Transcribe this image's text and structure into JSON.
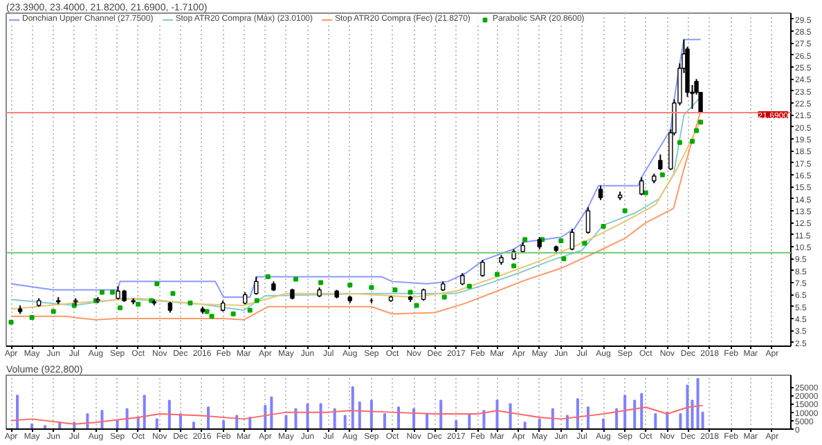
{
  "chart_data": [
    {
      "type": "candlestick",
      "title": "(23.3900, 23.4000, 21.8200, 21.6900, -1.7100)",
      "x": [
        "2015-04-14",
        "2015-05-11",
        "2015-06-08",
        "2015-07-03",
        "2015-08-04",
        "2015-09-02",
        "2015-09-11",
        "2015-09-24",
        "2015-10-24",
        "2015-11-16",
        "2016-01-02",
        "2016-01-31",
        "2016-03-03",
        "2016-03-19",
        "2016-04-13",
        "2016-05-10",
        "2016-06-18",
        "2016-07-13",
        "2016-08-01",
        "2016-09-01",
        "2016-09-29",
        "2016-10-27",
        "2016-11-15",
        "2016-12-13",
        "2017-01-10",
        "2017-02-08",
        "2017-03-07",
        "2017-03-25",
        "2017-04-07",
        "2017-05-01",
        "2017-05-25",
        "2017-06-17",
        "2017-07-10",
        "2017-07-28",
        "2017-08-25",
        "2017-09-25",
        "2017-10-13",
        "2017-10-22",
        "2017-11-06",
        "2017-11-11",
        "2017-11-19",
        "2017-11-25",
        "2017-11-30",
        "2017-12-07",
        "2017-12-13",
        "2017-12-19"
      ],
      "ohlc": [
        [
          5.3,
          5.6,
          4.9,
          5.1
        ],
        [
          5.6,
          6.2,
          5.5,
          6.0
        ],
        [
          6.0,
          6.3,
          5.7,
          5.9
        ],
        [
          5.9,
          6.2,
          5.6,
          6.0
        ],
        [
          6.0,
          6.3,
          5.8,
          6.1
        ],
        [
          6.2,
          7.2,
          6.1,
          6.8
        ],
        [
          6.8,
          6.9,
          5.9,
          6.0
        ],
        [
          6.0,
          6.2,
          5.7,
          5.9
        ],
        [
          5.9,
          6.1,
          5.6,
          5.8
        ],
        [
          5.8,
          5.9,
          5.0,
          5.2
        ],
        [
          5.3,
          5.5,
          4.9,
          5.1
        ],
        [
          5.2,
          6.0,
          5.1,
          5.8
        ],
        [
          5.8,
          6.7,
          5.7,
          6.5
        ],
        [
          6.6,
          8.0,
          6.5,
          7.6
        ],
        [
          7.4,
          7.6,
          6.8,
          6.9
        ],
        [
          6.9,
          7.0,
          6.1,
          6.2
        ],
        [
          6.4,
          7.1,
          6.3,
          6.9
        ],
        [
          6.8,
          6.9,
          6.2,
          6.3
        ],
        [
          6.3,
          6.4,
          5.8,
          6.0
        ],
        [
          6.0,
          6.2,
          5.8,
          6.0
        ],
        [
          6.0,
          6.4,
          5.9,
          6.3
        ],
        [
          6.3,
          6.4,
          5.9,
          6.1
        ],
        [
          6.1,
          7.0,
          6.0,
          6.9
        ],
        [
          6.9,
          7.6,
          6.8,
          7.4
        ],
        [
          7.4,
          8.3,
          7.3,
          8.1
        ],
        [
          8.1,
          9.4,
          8.0,
          9.2
        ],
        [
          9.2,
          9.8,
          9.0,
          9.6
        ],
        [
          9.5,
          10.3,
          9.4,
          10.1
        ],
        [
          10.1,
          10.9,
          10.0,
          10.6
        ],
        [
          11.1,
          11.3,
          10.3,
          10.5
        ],
        [
          10.5,
          10.6,
          10.0,
          10.2
        ],
        [
          10.3,
          12.0,
          10.2,
          11.7
        ],
        [
          11.7,
          13.8,
          11.6,
          13.5
        ],
        [
          15.3,
          15.6,
          14.4,
          14.6
        ],
        [
          14.6,
          15.1,
          14.4,
          14.8
        ],
        [
          14.9,
          16.3,
          14.8,
          16.0
        ],
        [
          16.0,
          16.6,
          15.8,
          16.4
        ],
        [
          17.7,
          18.2,
          16.9,
          17.0
        ],
        [
          17.0,
          20.3,
          16.9,
          20.0
        ],
        [
          20.0,
          22.8,
          19.8,
          22.5
        ],
        [
          22.5,
          25.8,
          22.3,
          25.4
        ],
        [
          25.4,
          27.8,
          25.0,
          26.6
        ],
        [
          27.0,
          27.2,
          23.0,
          23.4
        ],
        [
          23.4,
          24.0,
          22.0,
          23.3
        ],
        [
          24.3,
          24.5,
          23.2,
          23.4
        ],
        [
          23.39,
          23.4,
          21.69,
          21.69
        ]
      ],
      "series": [
        {
          "name": "Donchian Upper Channel (27.7500)",
          "type": "line",
          "color": "#8899ff",
          "x": [
            "2015-04-01",
            "2015-06-01",
            "2015-09-01",
            "2015-09-05",
            "2016-01-20",
            "2016-02-01",
            "2016-03-10",
            "2016-03-20",
            "2016-09-15",
            "2016-10-01",
            "2016-11-20",
            "2016-12-20",
            "2017-01-15",
            "2017-02-10",
            "2017-03-25",
            "2017-04-10",
            "2017-06-01",
            "2017-06-20",
            "2017-07-10",
            "2017-07-25",
            "2017-09-20",
            "2017-09-25",
            "2017-10-15",
            "2017-11-06",
            "2017-11-11",
            "2017-11-19",
            "2017-11-25",
            "2017-12-19"
          ],
          "values": [
            7.4,
            6.9,
            6.9,
            7.6,
            7.6,
            6.3,
            6.3,
            8.0,
            8.0,
            7.6,
            7.4,
            7.6,
            8.3,
            9.4,
            10.3,
            10.9,
            11.3,
            12.0,
            13.8,
            15.6,
            15.6,
            16.3,
            18.2,
            20.3,
            22.8,
            25.8,
            27.8,
            27.8
          ]
        },
        {
          "name": "Parabolic SAR (20.8600)",
          "type": "scatter",
          "color": "#00aa00",
          "x": [
            "2015-04-01",
            "2015-05-01",
            "2015-06-01",
            "2015-07-01",
            "2015-08-01",
            "2015-08-10",
            "2015-08-25",
            "2015-09-05",
            "2015-10-01",
            "2015-10-20",
            "2015-10-28",
            "2015-11-20",
            "2015-12-15",
            "2016-01-08",
            "2016-01-15",
            "2016-02-15",
            "2016-03-10",
            "2016-03-20",
            "2016-04-05",
            "2016-05-15",
            "2016-06-20",
            "2016-08-01",
            "2016-09-01",
            "2016-10-05",
            "2016-10-27",
            "2016-11-05",
            "2016-12-15",
            "2017-01-20",
            "2017-03-01",
            "2017-03-25",
            "2017-04-10",
            "2017-05-05",
            "2017-06-01",
            "2017-06-05",
            "2017-07-05",
            "2017-08-01",
            "2017-09-01",
            "2017-10-01",
            "2017-10-25",
            "2017-11-19",
            "2017-12-07",
            "2017-12-13",
            "2017-12-19"
          ],
          "values": [
            4.2,
            4.6,
            5.1,
            5.6,
            6.0,
            6.7,
            6.7,
            5.4,
            5.7,
            6.0,
            7.4,
            6.6,
            5.8,
            5.1,
            4.7,
            4.9,
            5.2,
            6.0,
            8.0,
            7.8,
            7.5,
            7.3,
            7.1,
            6.9,
            6.7,
            5.6,
            6.3,
            7.2,
            8.2,
            8.9,
            11.1,
            11.1,
            11.0,
            9.5,
            10.8,
            12.2,
            13.5,
            15.0,
            16.5,
            19.2,
            19.3,
            20.2,
            20.9
          ]
        },
        {
          "name": "Stop ATR20 Compra (Máx) (23.0100)",
          "type": "line",
          "color": "#88cccc",
          "x": [
            "2015-04-01",
            "2015-07-01",
            "2015-09-10",
            "2016-01-01",
            "2016-03-01",
            "2016-04-01",
            "2016-09-01",
            "2016-11-01",
            "2017-01-01",
            "2017-02-15",
            "2017-04-01",
            "2017-05-15",
            "2017-07-01",
            "2017-08-01",
            "2017-09-15",
            "2017-10-20",
            "2017-11-10",
            "2017-11-25",
            "2017-12-19"
          ],
          "values": [
            6.1,
            5.6,
            6.2,
            5.7,
            5.2,
            6.4,
            6.6,
            6.6,
            6.6,
            7.4,
            8.3,
            9.3,
            10.2,
            12.3,
            13.3,
            14.5,
            16.5,
            21.5,
            23.0
          ]
        },
        {
          "name": "Stop ATR20 Compra (Fec) (21.8270)",
          "type": "line",
          "color": "#ff9966",
          "x": [
            "2015-04-01",
            "2015-06-20",
            "2015-07-01",
            "2015-08-01",
            "2015-09-01",
            "2016-02-01",
            "2016-03-01",
            "2016-04-05",
            "2016-09-01",
            "2016-10-01",
            "2016-12-01",
            "2017-01-15",
            "2017-03-01",
            "2017-04-10",
            "2017-06-01",
            "2017-07-20",
            "2017-09-01",
            "2017-10-01",
            "2017-11-10",
            "2017-11-25",
            "2017-12-19"
          ],
          "values": [
            4.7,
            4.7,
            4.6,
            4.4,
            4.5,
            4.5,
            4.4,
            5.5,
            5.5,
            4.9,
            5.0,
            5.8,
            6.8,
            7.7,
            8.7,
            10.0,
            11.2,
            12.5,
            13.7,
            17.0,
            21.8
          ]
        },
        {
          "type": "line",
          "color": "#e8c870",
          "x": [
            "2015-04-01",
            "2015-07-01",
            "2015-10-01",
            "2016-01-01",
            "2016-03-01",
            "2016-05-01",
            "2016-08-01",
            "2016-11-01",
            "2017-01-01",
            "2017-03-01",
            "2017-05-01",
            "2017-07-01",
            "2017-09-01",
            "2017-10-15",
            "2017-11-15",
            "2017-12-19"
          ],
          "values": [
            5.3,
            5.8,
            6.2,
            5.7,
            5.6,
            6.6,
            6.6,
            6.3,
            6.8,
            8.0,
            9.3,
            10.8,
            12.6,
            14.0,
            17.0,
            21.0
          ]
        }
      ],
      "ref_lines": [
        {
          "axis": "y",
          "value": 21.69,
          "label": "21.6900",
          "color": "#ff8080"
        },
        {
          "axis": "y",
          "value": 10.0,
          "color": "#66cc66"
        }
      ],
      "xlim": [
        "2015-03-25",
        "2018-04-28"
      ],
      "xticks": [
        {
          "value": "2015-04-01",
          "label": "Apr"
        },
        {
          "value": "2015-05-01",
          "label": "May"
        },
        {
          "value": "2015-06-01",
          "label": "Jun"
        },
        {
          "value": "2015-07-01",
          "label": "Jul"
        },
        {
          "value": "2015-08-01",
          "label": "Aug"
        },
        {
          "value": "2015-09-01",
          "label": "Sep"
        },
        {
          "value": "2015-10-01",
          "label": "Oct"
        },
        {
          "value": "2015-11-01",
          "label": "Nov"
        },
        {
          "value": "2015-12-01",
          "label": "Dec"
        },
        {
          "value": "2016-01-01",
          "label": "2016"
        },
        {
          "value": "2016-02-01",
          "label": "Feb"
        },
        {
          "value": "2016-03-01",
          "label": "Mar"
        },
        {
          "value": "2016-04-01",
          "label": "Apr"
        },
        {
          "value": "2016-05-01",
          "label": "May"
        },
        {
          "value": "2016-06-01",
          "label": "Jun"
        },
        {
          "value": "2016-07-01",
          "label": "Jul"
        },
        {
          "value": "2016-08-01",
          "label": "Aug"
        },
        {
          "value": "2016-09-01",
          "label": "Sep"
        },
        {
          "value": "2016-10-01",
          "label": "Oct"
        },
        {
          "value": "2016-11-01",
          "label": "Nov"
        },
        {
          "value": "2016-12-01",
          "label": "Dec"
        },
        {
          "value": "2017-01-01",
          "label": "2017"
        },
        {
          "value": "2017-02-01",
          "label": "Feb"
        },
        {
          "value": "2017-03-01",
          "label": "Mar"
        },
        {
          "value": "2017-04-01",
          "label": "Apr"
        },
        {
          "value": "2017-05-01",
          "label": "May"
        },
        {
          "value": "2017-06-01",
          "label": "Jun"
        },
        {
          "value": "2017-07-01",
          "label": "Jul"
        },
        {
          "value": "2017-08-01",
          "label": "Aug"
        },
        {
          "value": "2017-09-01",
          "label": "Sep"
        },
        {
          "value": "2017-10-01",
          "label": "Oct"
        },
        {
          "value": "2017-11-01",
          "label": "Nov"
        },
        {
          "value": "2017-12-01",
          "label": "Dec"
        },
        {
          "value": "2018-01-01",
          "label": "2018"
        },
        {
          "value": "2018-02-01",
          "label": "Feb"
        },
        {
          "value": "2018-03-01",
          "label": "Mar"
        },
        {
          "value": "2018-04-01",
          "label": "Apr"
        }
      ],
      "ylim": [
        2.2,
        30.0
      ],
      "yticks": [
        2.5,
        3.5,
        4.5,
        5.5,
        6.5,
        7.5,
        8.5,
        9.5,
        10.5,
        11.5,
        12.5,
        13.5,
        14.5,
        15.5,
        16.5,
        17.5,
        18.5,
        19.5,
        20.5,
        21.5,
        22.5,
        23.5,
        24.5,
        25.5,
        26.5,
        27.5,
        28.5,
        29.5
      ],
      "grid": "x",
      "legend": "top left"
    },
    {
      "type": "bar",
      "title": "Volume (922,800)",
      "series": [
        {
          "type": "bar",
          "color": "#8080ff",
          "x": [
            "2015-04-10",
            "2015-05-01",
            "2015-05-20",
            "2015-06-10",
            "2015-07-01",
            "2015-07-20",
            "2015-08-10",
            "2015-09-01",
            "2015-09-15",
            "2015-10-01",
            "2015-10-10",
            "2015-10-28",
            "2015-11-15",
            "2015-12-01",
            "2015-12-20",
            "2016-01-10",
            "2016-02-01",
            "2016-02-20",
            "2016-03-10",
            "2016-04-01",
            "2016-04-10",
            "2016-05-01",
            "2016-05-15",
            "2016-06-01",
            "2016-06-20",
            "2016-07-10",
            "2016-07-25",
            "2016-08-05",
            "2016-08-15",
            "2016-09-01",
            "2016-09-20",
            "2016-10-10",
            "2016-11-01",
            "2016-11-20",
            "2016-12-10",
            "2017-01-01",
            "2017-01-20",
            "2017-02-10",
            "2017-03-01",
            "2017-03-20",
            "2017-04-10",
            "2017-05-01",
            "2017-05-20",
            "2017-06-10",
            "2017-06-25",
            "2017-07-10",
            "2017-08-01",
            "2017-08-20",
            "2017-09-01",
            "2017-09-15",
            "2017-09-25",
            "2017-10-15",
            "2017-11-01",
            "2017-11-20",
            "2017-11-30",
            "2017-12-07",
            "2017-12-15",
            "2017-12-22"
          ],
          "values": [
            20000,
            3000,
            2000,
            4000,
            4000,
            9000,
            11000,
            5000,
            12000,
            7000,
            20000,
            6000,
            17000,
            9000,
            4000,
            13000,
            5000,
            8000,
            7000,
            14000,
            19000,
            8000,
            12000,
            15000,
            15000,
            12000,
            8000,
            25000,
            16000,
            17000,
            9000,
            13000,
            12000,
            9000,
            17000,
            5000,
            9000,
            11000,
            17000,
            15000,
            4000,
            6000,
            12000,
            8000,
            18000,
            13000,
            6000,
            12000,
            20000,
            17000,
            21000,
            9000,
            10000,
            9000,
            26000,
            17000,
            30000,
            10000
          ]
        },
        {
          "type": "line",
          "color": "#ff6666",
          "x": [
            "2015-04-01",
            "2015-05-01",
            "2015-07-01",
            "2015-08-01",
            "2015-10-01",
            "2015-11-01",
            "2016-01-01",
            "2016-03-01",
            "2016-05-01",
            "2016-07-01",
            "2016-08-01",
            "2016-10-01",
            "2016-12-01",
            "2017-02-01",
            "2017-03-01",
            "2017-05-01",
            "2017-06-01",
            "2017-08-01",
            "2017-10-01",
            "2017-11-01",
            "2017-12-01",
            "2017-12-22"
          ],
          "values": [
            5000,
            6000,
            3000,
            4000,
            7000,
            9000,
            8000,
            6000,
            10000,
            10000,
            11000,
            10000,
            9000,
            9000,
            11000,
            7000,
            6000,
            9000,
            13000,
            9000,
            13000,
            14000
          ]
        }
      ],
      "xlim": [
        "2015-03-25",
        "2018-04-28"
      ],
      "ylim": [
        0,
        32000
      ],
      "yticks": [
        0,
        5000,
        10000,
        15000,
        20000,
        25000
      ],
      "grid": "x"
    }
  ]
}
